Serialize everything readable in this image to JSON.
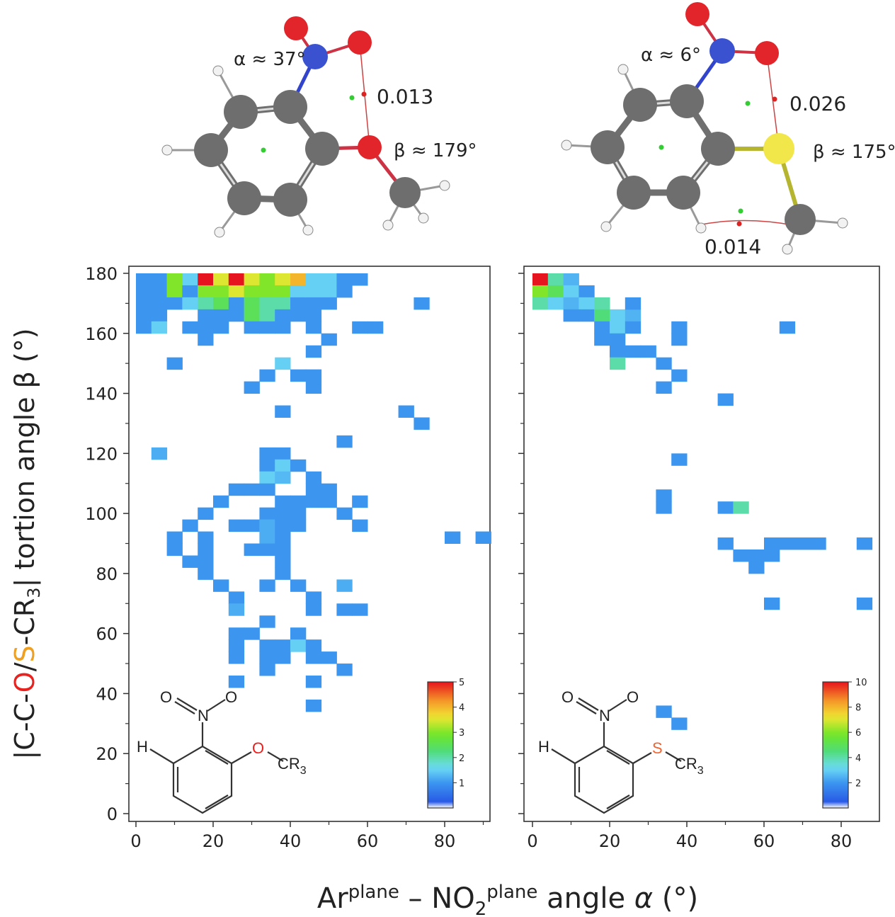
{
  "molecules": [
    {
      "alpha_label": "α ≈ 37°",
      "beta_label": "β ≈ 179°",
      "bcp_labels": [
        "0.013"
      ]
    },
    {
      "alpha_label": "α ≈ 6°",
      "beta_label": "β ≈ 175°",
      "bcp_labels": [
        "0.026",
        "0.014"
      ]
    }
  ],
  "axes": {
    "y_label_parts": [
      "|C-C-",
      "O",
      "/",
      "S",
      "-CR",
      "3",
      "| tortion angle β (°)"
    ],
    "x_label_parts": [
      "Ar",
      "plane",
      " – NO",
      "2",
      "plane",
      " angle ",
      "α",
      " (°)"
    ],
    "x_ticks": [
      0,
      20,
      40,
      60,
      80
    ],
    "y_ticks": [
      0,
      20,
      40,
      60,
      80,
      100,
      120,
      140,
      160,
      180
    ]
  },
  "structures": [
    {
      "h": "H",
      "n": "N",
      "o_top_left": "O",
      "o_top_right": "O",
      "hetero": "O",
      "cr": "CR",
      "cr_sub": "3"
    },
    {
      "h": "H",
      "n": "N",
      "o_top_left": "O",
      "o_top_right": "O",
      "hetero": "S",
      "cr": "CR",
      "cr_sub": "3"
    }
  ],
  "colors": {
    "oxygen": "#e8221f",
    "sulfur": "#f0a020",
    "hetero_S_struct": "#ee6633",
    "frame": "#333333"
  },
  "chart_data": [
    {
      "type": "heatmap",
      "title": "",
      "xlim": [
        0,
        90
      ],
      "ylim": [
        0,
        180
      ],
      "bin_width": 4,
      "colorbar": {
        "min": 0,
        "max": 5,
        "ticks": [
          1,
          2,
          3,
          4,
          5
        ]
      },
      "cells": [
        [
          4,
          178,
          1
        ],
        [
          4,
          174,
          1
        ],
        [
          4,
          170,
          1
        ],
        [
          4,
          166,
          1
        ],
        [
          4,
          162,
          1
        ],
        [
          8,
          178,
          1
        ],
        [
          8,
          174,
          1
        ],
        [
          8,
          170,
          1
        ],
        [
          8,
          166,
          1
        ],
        [
          8,
          162,
          1.5
        ],
        [
          12,
          178,
          3
        ],
        [
          12,
          174,
          3
        ],
        [
          12,
          170,
          1
        ],
        [
          16,
          178,
          1.5
        ],
        [
          16,
          174,
          1
        ],
        [
          16,
          170,
          1.5
        ],
        [
          16,
          162,
          1
        ],
        [
          20,
          178,
          5
        ],
        [
          20,
          174,
          3
        ],
        [
          20,
          170,
          2
        ],
        [
          20,
          166,
          1
        ],
        [
          20,
          162,
          1
        ],
        [
          20,
          158,
          1
        ],
        [
          24,
          178,
          3.5
        ],
        [
          24,
          174,
          3
        ],
        [
          24,
          170,
          2.5
        ],
        [
          24,
          166,
          1
        ],
        [
          24,
          162,
          1
        ],
        [
          28,
          178,
          5
        ],
        [
          28,
          174,
          3.5
        ],
        [
          28,
          170,
          1
        ],
        [
          28,
          166,
          1
        ],
        [
          32,
          178,
          3.5
        ],
        [
          32,
          174,
          3
        ],
        [
          32,
          170,
          2.5
        ],
        [
          32,
          166,
          2.5
        ],
        [
          32,
          162,
          1
        ],
        [
          36,
          178,
          3
        ],
        [
          36,
          174,
          3
        ],
        [
          36,
          170,
          2
        ],
        [
          36,
          166,
          2
        ],
        [
          36,
          162,
          1
        ],
        [
          40,
          178,
          3.5
        ],
        [
          40,
          174,
          3
        ],
        [
          40,
          170,
          2
        ],
        [
          40,
          166,
          1
        ],
        [
          40,
          162,
          1
        ],
        [
          44,
          178,
          4
        ],
        [
          44,
          174,
          1.5
        ],
        [
          44,
          170,
          1
        ],
        [
          44,
          166,
          1
        ],
        [
          48,
          178,
          1.5
        ],
        [
          48,
          174,
          1.5
        ],
        [
          48,
          170,
          1
        ],
        [
          48,
          166,
          1
        ],
        [
          48,
          162,
          1
        ],
        [
          52,
          178,
          1.5
        ],
        [
          52,
          174,
          1.5
        ],
        [
          52,
          170,
          1
        ],
        [
          56,
          178,
          1
        ],
        [
          56,
          174,
          1
        ],
        [
          60,
          178,
          1
        ],
        [
          60,
          162,
          1
        ],
        [
          64,
          162,
          1
        ],
        [
          76,
          170,
          1
        ],
        [
          12,
          150,
          1
        ],
        [
          52,
          158,
          1
        ],
        [
          48,
          154,
          1
        ],
        [
          40,
          150,
          1.5
        ],
        [
          36,
          146,
          1
        ],
        [
          44,
          146,
          1
        ],
        [
          48,
          146,
          1
        ],
        [
          32,
          142,
          1
        ],
        [
          48,
          142,
          1
        ],
        [
          40,
          134,
          1
        ],
        [
          56,
          124,
          1
        ],
        [
          72,
          134,
          1
        ],
        [
          76,
          130,
          1
        ],
        [
          8,
          120,
          1.2
        ],
        [
          36,
          120,
          1
        ],
        [
          40,
          120,
          1
        ],
        [
          36,
          116,
          1
        ],
        [
          40,
          116,
          1.5
        ],
        [
          44,
          116,
          1
        ],
        [
          36,
          112,
          1.5
        ],
        [
          40,
          112,
          1.3
        ],
        [
          48,
          112,
          1
        ],
        [
          28,
          108,
          1
        ],
        [
          32,
          108,
          1
        ],
        [
          36,
          108,
          1
        ],
        [
          48,
          108,
          1
        ],
        [
          52,
          108,
          1
        ],
        [
          24,
          104,
          1
        ],
        [
          40,
          104,
          1
        ],
        [
          44,
          104,
          1
        ],
        [
          48,
          104,
          1
        ],
        [
          52,
          104,
          1
        ],
        [
          60,
          104,
          1
        ],
        [
          20,
          100,
          1
        ],
        [
          36,
          100,
          1
        ],
        [
          40,
          100,
          1
        ],
        [
          44,
          100,
          1
        ],
        [
          56,
          100,
          1
        ],
        [
          28,
          96,
          1
        ],
        [
          32,
          96,
          1
        ],
        [
          36,
          96,
          1.2
        ],
        [
          40,
          96,
          1
        ],
        [
          44,
          96,
          1
        ],
        [
          60,
          96,
          1
        ],
        [
          16,
          96,
          1
        ],
        [
          12,
          92,
          1
        ],
        [
          20,
          92,
          1
        ],
        [
          36,
          92,
          1.2
        ],
        [
          40,
          92,
          1
        ],
        [
          12,
          88,
          1
        ],
        [
          20,
          88,
          1
        ],
        [
          32,
          88,
          1
        ],
        [
          36,
          88,
          1
        ],
        [
          40,
          88,
          1
        ],
        [
          84,
          92,
          1
        ],
        [
          92,
          92,
          1
        ],
        [
          16,
          84,
          1
        ],
        [
          20,
          84,
          1
        ],
        [
          40,
          84,
          1
        ],
        [
          20,
          80,
          1
        ],
        [
          40,
          80,
          1
        ],
        [
          24,
          76,
          1
        ],
        [
          36,
          76,
          1
        ],
        [
          44,
          76,
          1
        ],
        [
          56,
          76,
          1.2
        ],
        [
          28,
          72,
          1
        ],
        [
          48,
          72,
          1
        ],
        [
          28,
          68,
          1.2
        ],
        [
          48,
          68,
          1
        ],
        [
          56,
          68,
          1
        ],
        [
          60,
          68,
          1
        ],
        [
          36,
          64,
          1
        ],
        [
          32,
          60,
          1
        ],
        [
          44,
          60,
          1
        ],
        [
          28,
          60,
          1
        ],
        [
          44,
          56,
          1.3
        ],
        [
          28,
          56,
          1
        ],
        [
          36,
          56,
          1
        ],
        [
          40,
          56,
          1
        ],
        [
          44,
          56,
          1.5
        ],
        [
          48,
          56,
          1
        ],
        [
          28,
          52,
          1
        ],
        [
          36,
          52,
          1
        ],
        [
          40,
          52,
          1
        ],
        [
          48,
          52,
          1
        ],
        [
          52,
          52,
          1
        ],
        [
          36,
          48,
          1
        ],
        [
          56,
          48,
          1
        ],
        [
          28,
          44,
          1
        ],
        [
          48,
          44,
          1
        ],
        [
          48,
          36,
          1
        ]
      ]
    },
    {
      "type": "heatmap",
      "title": "",
      "xlim": [
        0,
        90
      ],
      "ylim": [
        0,
        180
      ],
      "bin_width": 4,
      "colorbar": {
        "min": 0,
        "max": 10,
        "ticks": [
          2,
          4,
          6,
          8,
          10
        ]
      },
      "cells": [
        [
          4,
          178,
          10
        ],
        [
          4,
          174,
          6
        ],
        [
          4,
          170,
          4
        ],
        [
          8,
          178,
          4
        ],
        [
          8,
          174,
          5
        ],
        [
          8,
          170,
          3
        ],
        [
          12,
          178,
          2.5
        ],
        [
          12,
          174,
          3
        ],
        [
          12,
          170,
          2.5
        ],
        [
          12,
          166,
          2
        ],
        [
          16,
          174,
          2
        ],
        [
          16,
          170,
          3
        ],
        [
          16,
          166,
          2
        ],
        [
          20,
          170,
          4
        ],
        [
          20,
          166,
          4.5
        ],
        [
          20,
          162,
          2
        ],
        [
          20,
          158,
          2
        ],
        [
          24,
          166,
          3
        ],
        [
          24,
          162,
          3
        ],
        [
          24,
          158,
          2
        ],
        [
          28,
          166,
          2.5
        ],
        [
          28,
          162,
          2
        ],
        [
          28,
          170,
          2
        ],
        [
          24,
          154,
          2
        ],
        [
          28,
          154,
          2
        ],
        [
          32,
          154,
          2
        ],
        [
          24,
          150,
          4
        ],
        [
          36,
          150,
          2
        ],
        [
          36,
          142,
          2
        ],
        [
          40,
          146,
          2
        ],
        [
          40,
          162,
          2
        ],
        [
          40,
          158,
          2
        ],
        [
          68,
          162,
          2
        ],
        [
          52,
          138,
          2
        ],
        [
          40,
          118,
          2
        ],
        [
          36,
          106,
          2
        ],
        [
          36,
          102,
          2
        ],
        [
          52,
          102,
          2
        ],
        [
          56,
          102,
          4
        ],
        [
          52,
          90,
          2
        ],
        [
          64,
          90,
          2
        ],
        [
          68,
          90,
          2
        ],
        [
          72,
          90,
          2
        ],
        [
          76,
          90,
          2
        ],
        [
          88,
          90,
          2
        ],
        [
          56,
          86,
          2
        ],
        [
          60,
          86,
          2
        ],
        [
          64,
          86,
          2
        ],
        [
          60,
          82,
          2
        ],
        [
          64,
          70,
          2
        ],
        [
          88,
          70,
          2
        ],
        [
          36,
          34,
          2
        ],
        [
          40,
          30,
          2
        ]
      ]
    }
  ]
}
